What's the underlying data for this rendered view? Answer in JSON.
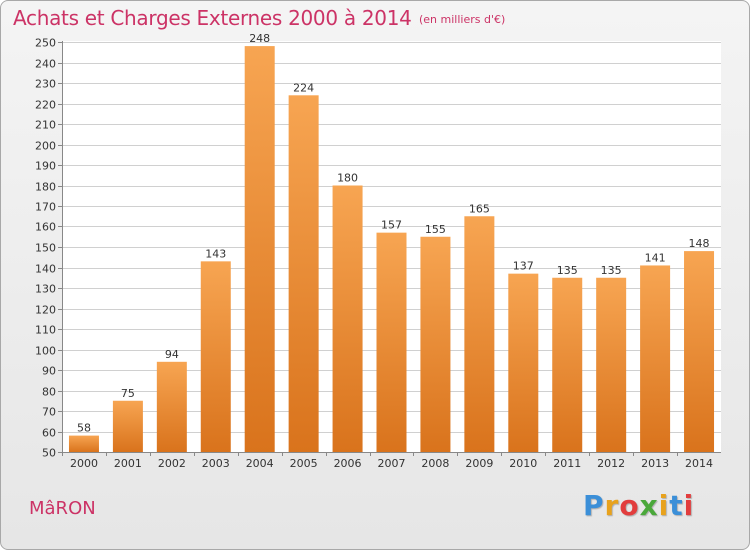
{
  "title": "Achats et Charges Externes 2000 à 2014",
  "unit": "(en milliers d'€)",
  "commune": "MâRON",
  "brand": {
    "letters": [
      "P",
      "r",
      "o",
      "x",
      "i",
      "t",
      "i"
    ],
    "colors": [
      "#3b8fd8",
      "#e8a21c",
      "#e23d3d",
      "#4aa83a",
      "#e8a21c",
      "#3b8fd8",
      "#e23d3d"
    ]
  },
  "colors": {
    "title": "#cc3366",
    "bar_light": "#f7a552",
    "bar_dark": "#d9731c",
    "grid": "#d0d0d0"
  },
  "chart_data": {
    "type": "bar",
    "title": "Achats et Charges Externes 2000 à 2014",
    "xlabel": "",
    "ylabel": "",
    "categories": [
      "2000",
      "2001",
      "2002",
      "2003",
      "2004",
      "2005",
      "2006",
      "2007",
      "2008",
      "2009",
      "2010",
      "2011",
      "2012",
      "2013",
      "2014"
    ],
    "values": [
      58,
      75,
      94,
      143,
      248,
      224,
      180,
      157,
      155,
      165,
      137,
      135,
      135,
      141,
      148
    ],
    "ylim": [
      50,
      250
    ],
    "ytick_step": 10,
    "grid": true,
    "data_labels": true
  }
}
